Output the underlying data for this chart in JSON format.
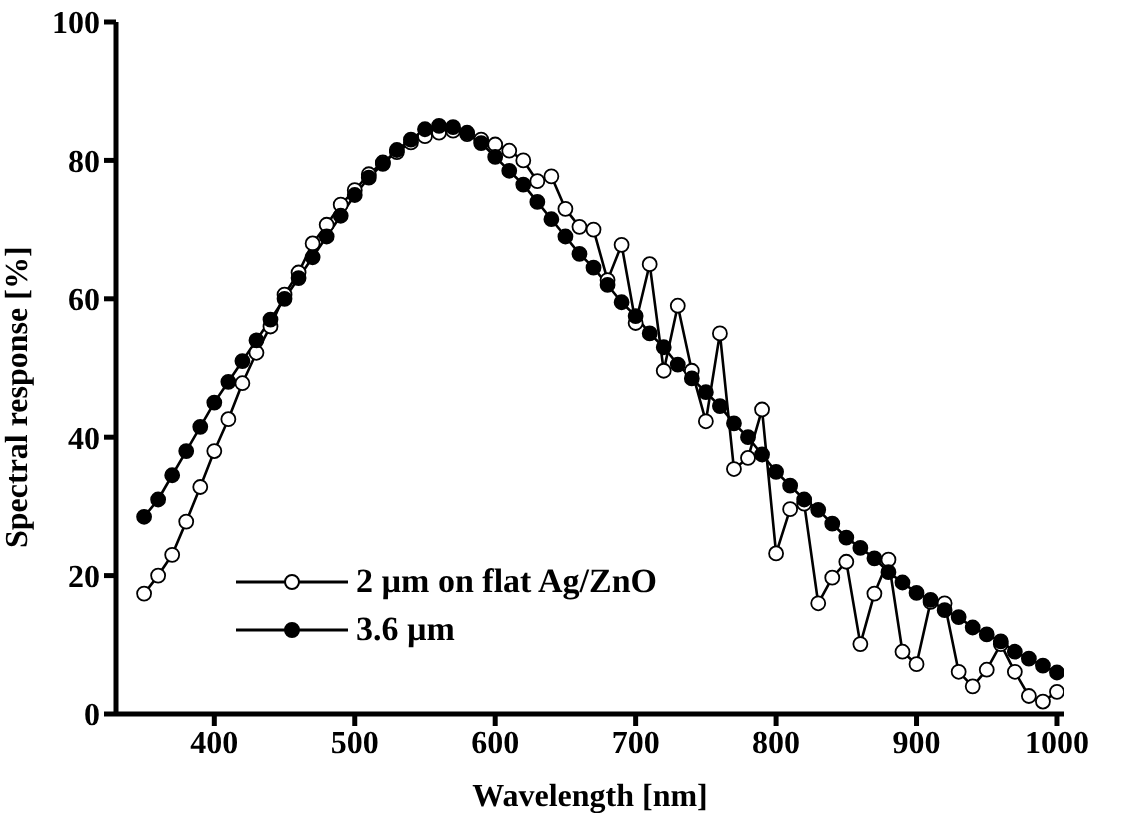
{
  "chart_data": {
    "type": "line",
    "xlabel": "Wavelength [nm]",
    "ylabel": "Spectral response [%]",
    "xlim": [
      330,
      1005
    ],
    "xticks": [
      400,
      500,
      600,
      700,
      800,
      900,
      1000
    ],
    "ylim": [
      0,
      100
    ],
    "yticks": [
      0,
      20,
      40,
      60,
      80,
      100
    ],
    "grid": false,
    "legend": "bottom left",
    "marker": "circle",
    "line_style": "solid",
    "series": [
      {
        "name": "2 µm on flat Ag/ZnO",
        "color": "#000000",
        "x": [
          350,
          360,
          370,
          380,
          390,
          400,
          410,
          420,
          430,
          440,
          450,
          460,
          470,
          480,
          490,
          500,
          510,
          520,
          530,
          540,
          550,
          560,
          570,
          580,
          590,
          600,
          610,
          620,
          630,
          640,
          650,
          660,
          670,
          680,
          690,
          700,
          710,
          720,
          730,
          740,
          750,
          760,
          770,
          780,
          790,
          800,
          810,
          820,
          830,
          840,
          850,
          860,
          870,
          880,
          890,
          900,
          910,
          920,
          930,
          940,
          950,
          960,
          970,
          980,
          990,
          1000
        ],
        "values": [
          17.4,
          20,
          23,
          27.8,
          32.8,
          38,
          42.6,
          47.8,
          52.2,
          56,
          60.6,
          63.8,
          68,
          70.7,
          73.6,
          75.7,
          78,
          79.7,
          81.2,
          82.6,
          83.5,
          84,
          84.3,
          83.8,
          83,
          82.3,
          81.4,
          80,
          77,
          77.7,
          73,
          70.4,
          70,
          62.7,
          67.8,
          56.5,
          65,
          49.6,
          59,
          49.6,
          42.3,
          55,
          35.4,
          37,
          44,
          23.2,
          29.6,
          30.4,
          16,
          19.7,
          22,
          10.1,
          17.4,
          22.3,
          9,
          7.2,
          16.2,
          16,
          6.1,
          4,
          6.4,
          10.1,
          6.1,
          2.6,
          1.8,
          3.2
        ]
      },
      {
        "name": "3.6 µm",
        "color": "#000000",
        "x": [
          350,
          360,
          370,
          380,
          390,
          400,
          410,
          420,
          430,
          440,
          450,
          460,
          470,
          480,
          490,
          500,
          510,
          520,
          530,
          540,
          550,
          560,
          570,
          580,
          590,
          600,
          610,
          620,
          630,
          640,
          650,
          660,
          670,
          680,
          690,
          700,
          710,
          720,
          730,
          740,
          750,
          760,
          770,
          780,
          790,
          800,
          810,
          820,
          830,
          840,
          850,
          860,
          870,
          880,
          890,
          900,
          910,
          920,
          930,
          940,
          950,
          960,
          970,
          980,
          990,
          1000
        ],
        "values": [
          28.5,
          31,
          34.5,
          38,
          41.5,
          45,
          48,
          51,
          54,
          57,
          60,
          63,
          66,
          69,
          72,
          75,
          77.5,
          79.5,
          81.5,
          83,
          84.5,
          85,
          84.8,
          84,
          82.5,
          80.5,
          78.5,
          76.5,
          74,
          71.5,
          69,
          66.5,
          64.5,
          62,
          59.5,
          57.5,
          55,
          53,
          50.5,
          48.5,
          46.5,
          44.5,
          42,
          40,
          37.5,
          35,
          33,
          31,
          29.5,
          27.5,
          25.5,
          24,
          22.5,
          20.5,
          19,
          17.5,
          16.5,
          15,
          14,
          12.5,
          11.5,
          10.5,
          9,
          8,
          7,
          6
        ]
      }
    ]
  }
}
